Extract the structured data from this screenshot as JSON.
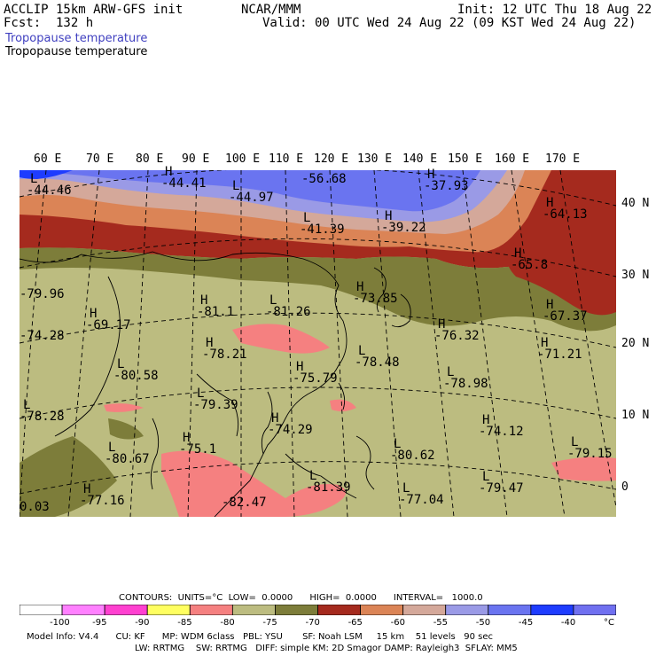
{
  "header": {
    "model": "ACCLIP 15km ARW-GFS init",
    "center": "NCAR/MMM",
    "init": "Init: 12 UTC Thu 18 Aug 22",
    "fcst": "Fcst:  132 h",
    "valid": "Valid: 00 UTC Wed 24 Aug 22 (09 KST Wed 24 Aug 22)",
    "field_title_1": "Tropopause temperature",
    "field_title_2": "Tropopause temperature"
  },
  "map": {
    "lon_labels": [
      "60 E",
      "70 E",
      "80 E",
      "90 E",
      "100 E",
      "110 E",
      "120 E",
      "130 E",
      "140 E",
      "150 E",
      "160 E",
      "170 E"
    ],
    "lat_labels": [
      "40 N",
      "30 N",
      "20 N",
      "10 N",
      "0"
    ],
    "colors": {
      "c1": "#1e3cff",
      "c2": "#6a74f0",
      "c3": "#9a9ae6",
      "c4": "#d4a89a",
      "c5": "#db8456",
      "c6": "#a52a1e",
      "c7": "#7d7d3a",
      "c8": "#bcbc80",
      "c9": "#f58080",
      "land": "#bcbc80"
    },
    "values": [
      {
        "text": "-44.46",
        "mark": "L"
      },
      {
        "text": "-44.41",
        "mark": "H"
      },
      {
        "text": "-44.97",
        "mark": "L"
      },
      {
        "text": "-56.68",
        "mark": ""
      },
      {
        "text": "-37.93",
        "mark": "H"
      },
      {
        "text": "-41.39",
        "mark": "L"
      },
      {
        "text": "-39.22",
        "mark": "H"
      },
      {
        "text": "-64.13",
        "mark": "H"
      },
      {
        "text": "-65.8",
        "mark": "H"
      },
      {
        "text": "-79.96",
        "mark": ""
      },
      {
        "text": "-73.85",
        "mark": "H"
      },
      {
        "text": "-81.1",
        "mark": "H"
      },
      {
        "text": "-81.26",
        "mark": "L"
      },
      {
        "text": "-67.37",
        "mark": "H"
      },
      {
        "text": "-74.28",
        "mark": ""
      },
      {
        "text": "-69.17",
        "mark": "H"
      },
      {
        "text": "-76.32",
        "mark": "H"
      },
      {
        "text": "-78.21",
        "mark": "H"
      },
      {
        "text": "-78.48",
        "mark": "L"
      },
      {
        "text": "-71.21",
        "mark": "H"
      },
      {
        "text": "-80.58",
        "mark": "L"
      },
      {
        "text": "-75.79",
        "mark": "H"
      },
      {
        "text": "-78.98",
        "mark": "L"
      },
      {
        "text": "-79.39",
        "mark": "L"
      },
      {
        "text": "-78.28",
        "mark": "L"
      },
      {
        "text": "-74.12",
        "mark": "H"
      },
      {
        "text": "-75.1",
        "mark": "H"
      },
      {
        "text": "-74.29",
        "mark": "H"
      },
      {
        "text": "-80.67",
        "mark": "L"
      },
      {
        "text": "-80.62",
        "mark": "L"
      },
      {
        "text": "-79.15",
        "mark": "L"
      },
      {
        "text": "-79.47",
        "mark": "L"
      },
      {
        "text": "-81.39",
        "mark": "L"
      },
      {
        "text": "0.03",
        "mark": ""
      },
      {
        "text": "-77.16",
        "mark": "H"
      },
      {
        "text": "-82.47",
        "mark": ""
      },
      {
        "text": "-77.04",
        "mark": "L"
      }
    ]
  },
  "contours": {
    "line": "CONTOURS:  UNITS=°C  LOW=  0.0000      HIGH=  0.0000      INTERVAL=   1000.0"
  },
  "colorbar": {
    "labels": [
      "-100",
      "-95",
      "-90",
      "-85",
      "-80",
      "-75",
      "-70",
      "-65",
      "-60",
      "-55",
      "-50",
      "-45",
      "-40",
      "°C"
    ],
    "colors": [
      "#ffffff",
      "#ff80ff",
      "#ff40d0",
      "#ffff60",
      "#f58080",
      "#bcbc80",
      "#7d7d3a",
      "#a52a1e",
      "#db8456",
      "#d4a89a",
      "#9a9ae6",
      "#6a74f0",
      "#1e3cff",
      "#7070f0"
    ]
  },
  "footer": {
    "line1": "Model Info: V4.4      CU: KF      MP: WDM 6class   PBL: YSU       SF: Noah LSM     15 km    51 levels   90 sec",
    "line2": "LW: RRTMG    SW: RRTMG   DIFF: simple KM: 2D Smagor DAMP: Rayleigh3  SFLAY: MM5"
  }
}
